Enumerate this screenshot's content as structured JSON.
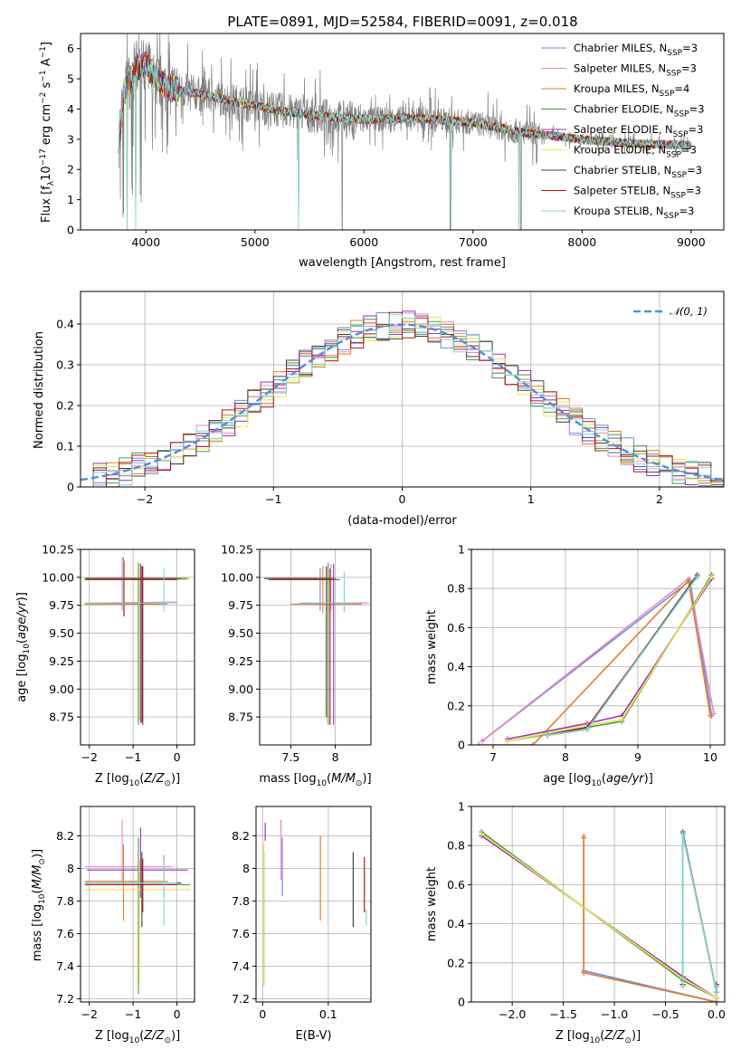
{
  "figure_title": "PLATE=0891, MJD=52584, FIBERID=0091, z=0.018",
  "colors": {
    "Chabrier MILES": "#6b8fd8",
    "Salpeter MILES": "#e887c8",
    "Kroupa MILES": "#e07f2a",
    "Chabrier ELODIE": "#4a9a4a",
    "Salpeter ELODIE": "#9b30b8",
    "Kroupa ELODIE": "#e8e84a",
    "Chabrier STELIB": "#404040",
    "Salpeter STELIB": "#b01818",
    "Kroupa STELIB": "#7ad6d6",
    "data": "#808080",
    "normal": "#5b8fd0"
  },
  "legend": [
    "Chabrier MILES, N_SSP=3",
    "Salpeter MILES, N_SSP=3",
    "Kroupa MILES, N_SSP=4",
    "Chabrier ELODIE, N_SSP=3",
    "Salpeter ELODIE, N_SSP=3",
    "Kroupa ELODIE, N_SSP=3",
    "Chabrier STELIB, N_SSP=3",
    "Salpeter STELIB, N_SSP=3",
    "Kroupa STELIB, N_SSP=3"
  ],
  "hist_legend": "𝒩(0, 1)",
  "chart_data": [
    {
      "id": "spectrum",
      "type": "line",
      "xlabel": "wavelength [Angstrom, rest frame]",
      "ylabel": "Flux [f_λ 10^-17 erg cm^-2 s^-1 A^-1]",
      "xlim": [
        3400,
        9300
      ],
      "ylim": [
        0,
        6.5
      ],
      "xticks": [
        4000,
        5000,
        6000,
        7000,
        8000,
        9000
      ],
      "yticks": [
        0,
        1,
        2,
        3,
        4,
        5,
        6
      ],
      "grid": false,
      "legend_position": "top-right",
      "continuum": {
        "x": [
          3750,
          3800,
          3900,
          4000,
          4100,
          4200,
          4500,
          5000,
          5500,
          6000,
          6500,
          7000,
          7500,
          8000,
          8500,
          9000
        ],
        "y": [
          3.0,
          4.6,
          5.3,
          5.5,
          5.0,
          4.7,
          4.5,
          4.1,
          3.8,
          3.65,
          3.7,
          3.55,
          3.2,
          3.0,
          2.85,
          2.8
        ]
      },
      "dips": [
        [
          3830,
          0
        ],
        [
          3905,
          0
        ],
        [
          5400,
          0
        ],
        [
          6800,
          0
        ],
        [
          7420,
          0
        ]
      ]
    },
    {
      "id": "residual_histogram",
      "type": "bar",
      "xlabel": "(data-model)/error",
      "ylabel": "Normed distribution",
      "xlim": [
        -2.5,
        2.5
      ],
      "ylim": [
        0,
        0.48
      ],
      "xticks": [
        -2,
        -1,
        0,
        1,
        2
      ],
      "yticks": [
        0.0,
        0.1,
        0.2,
        0.3,
        0.4
      ],
      "grid": true,
      "legend_position": "top-right",
      "bin_width": 0.1,
      "reference_curve": "normal(0,1)"
    },
    {
      "id": "age_vs_Z",
      "type": "scatter",
      "xlabel": "Z [log10(Z/Z⊙)]",
      "ylabel": "age  [log10(age/yr)]",
      "xlim": [
        -2.2,
        0.4
      ],
      "ylim": [
        8.5,
        10.25
      ],
      "xticks": [
        -2,
        -1,
        0
      ],
      "yticks": [
        8.75,
        9.0,
        9.25,
        9.5,
        9.75,
        10.0,
        10.25
      ],
      "ytick_labels": [
        "8.75",
        "9.00",
        "9.25",
        "9.50",
        "9.75",
        "10.00",
        "10.25"
      ],
      "grid": true,
      "crosses": [
        {
          "series": "Chabrier MILES",
          "x": [
            -2.1,
            -0.28
          ],
          "y": [
            9.76,
            9.77
          ],
          "vx": -1.22,
          "vy": [
            9.65,
            10.18
          ]
        },
        {
          "series": "Salpeter MILES",
          "x": [
            -2.1,
            0.0
          ],
          "y": [
            9.77,
            9.78
          ],
          "vx": -1.25,
          "vy": [
            9.7,
            10.18
          ]
        },
        {
          "series": "Kroupa MILES",
          "x": [
            -2.1,
            -0.22
          ],
          "y": [
            9.76,
            9.76
          ],
          "vx": -1.2,
          "vy": [
            9.65,
            10.15
          ]
        },
        {
          "series": "Chabrier ELODIE",
          "x": [
            -2.1,
            0.25
          ],
          "y": [
            9.99,
            9.99
          ],
          "vx": -0.88,
          "vy": [
            8.68,
            10.13
          ]
        },
        {
          "series": "Salpeter ELODIE",
          "x": [
            -2.05,
            0.2
          ],
          "y": [
            9.98,
            9.98
          ],
          "vx": -0.83,
          "vy": [
            8.7,
            10.12
          ]
        },
        {
          "series": "Kroupa ELODIE",
          "x": [
            -2.1,
            0.3
          ],
          "y": [
            9.98,
            9.98
          ],
          "vx": -0.86,
          "vy": [
            8.72,
            10.12
          ]
        },
        {
          "series": "Chabrier STELIB",
          "x": [
            -2.1,
            0.1
          ],
          "y": [
            9.99,
            9.99
          ],
          "vx": -0.8,
          "vy": [
            8.7,
            10.1
          ]
        },
        {
          "series": "Salpeter STELIB",
          "x": [
            -2.1,
            0.0
          ],
          "y": [
            9.98,
            9.98
          ],
          "vx": -0.78,
          "vy": [
            8.68,
            10.1
          ]
        },
        {
          "series": "Kroupa STELIB",
          "x": [
            -2.1,
            0.0
          ],
          "y": [
            9.77,
            9.77
          ],
          "vx": -0.3,
          "vy": [
            9.69,
            10.08
          ]
        }
      ]
    },
    {
      "id": "age_vs_mass",
      "type": "scatter",
      "xlabel": "mass [log10(M/M⊙)]",
      "ylabel": "",
      "xlim": [
        7.15,
        8.4
      ],
      "ylim": [
        8.5,
        10.25
      ],
      "xticks": [
        7.5,
        8.0
      ],
      "yticks": [
        8.75,
        9.0,
        9.25,
        9.5,
        9.75,
        10.0,
        10.25
      ],
      "ytick_labels": [
        "8.75",
        "9.00",
        "9.25",
        "9.50",
        "9.75",
        "10.00",
        "10.25"
      ],
      "grid": true,
      "crosses": [
        {
          "series": "Chabrier MILES",
          "x": [
            7.6,
            8.35
          ],
          "y": [
            9.77,
            9.77
          ],
          "vx": 7.83,
          "vy": [
            9.7,
            10.08
          ]
        },
        {
          "series": "Salpeter MILES",
          "x": [
            7.65,
            8.38
          ],
          "y": [
            9.77,
            9.77
          ],
          "vx": 7.95,
          "vy": [
            9.7,
            10.12
          ]
        },
        {
          "series": "Kroupa MILES",
          "x": [
            7.5,
            8.3
          ],
          "y": [
            9.76,
            9.76
          ],
          "vx": 7.86,
          "vy": [
            9.68,
            10.1
          ]
        },
        {
          "series": "Chabrier ELODIE",
          "x": [
            7.2,
            8.0
          ],
          "y": [
            9.99,
            9.99
          ],
          "vx": 7.92,
          "vy": [
            8.68,
            10.13
          ]
        },
        {
          "series": "Salpeter ELODIE",
          "x": [
            7.3,
            8.05
          ],
          "y": [
            9.98,
            9.98
          ],
          "vx": 7.98,
          "vy": [
            8.68,
            10.12
          ]
        },
        {
          "series": "Kroupa ELODIE",
          "x": [
            7.25,
            8.0
          ],
          "y": [
            9.98,
            9.98
          ],
          "vx": 7.9,
          "vy": [
            8.72,
            10.1
          ]
        },
        {
          "series": "Chabrier STELIB",
          "x": [
            7.2,
            7.95
          ],
          "y": [
            9.99,
            9.99
          ],
          "vx": 7.9,
          "vy": [
            8.75,
            10.1
          ]
        },
        {
          "series": "Salpeter STELIB",
          "x": [
            7.25,
            8.0
          ],
          "y": [
            9.98,
            9.98
          ],
          "vx": 7.94,
          "vy": [
            8.68,
            10.08
          ]
        },
        {
          "series": "Kroupa STELIB",
          "x": [
            7.6,
            8.2
          ],
          "y": [
            9.77,
            9.77
          ],
          "vx": 8.1,
          "vy": [
            9.69,
            10.05
          ]
        }
      ]
    },
    {
      "id": "weight_vs_age",
      "type": "line",
      "xlabel": "age  [log10(age/yr)]",
      "ylabel": "mass weight",
      "xlim": [
        6.7,
        10.2
      ],
      "ylim": [
        0,
        1.0
      ],
      "xticks": [
        7,
        8,
        9,
        10
      ],
      "yticks": [
        0.0,
        0.2,
        0.4,
        0.6,
        0.8,
        1.0
      ],
      "grid": true,
      "series": [
        {
          "name": "Chabrier MILES",
          "x": [
            6.85,
            9.72,
            10.02
          ],
          "y": [
            0.02,
            0.84,
            0.15
          ]
        },
        {
          "name": "Salpeter MILES",
          "x": [
            6.85,
            9.7,
            10.05
          ],
          "y": [
            0.02,
            0.85,
            0.16
          ]
        },
        {
          "name": "Kroupa MILES",
          "x": [
            6.8,
            7.55,
            9.7,
            10.0
          ],
          "y": [
            0.0,
            0.0,
            0.84,
            0.15
          ]
        },
        {
          "name": "Chabrier ELODIE",
          "x": [
            7.2,
            8.3,
            8.78,
            10.02
          ],
          "y": [
            0.02,
            0.09,
            0.12,
            0.87
          ]
        },
        {
          "name": "Salpeter ELODIE",
          "x": [
            7.2,
            8.3,
            8.78,
            10.02
          ],
          "y": [
            0.03,
            0.11,
            0.15,
            0.85
          ]
        },
        {
          "name": "Kroupa ELODIE",
          "x": [
            7.2,
            8.3,
            8.78,
            10.02
          ],
          "y": [
            0.02,
            0.1,
            0.13,
            0.86
          ]
        },
        {
          "name": "Chabrier STELIB",
          "x": [
            7.75,
            8.3,
            9.82
          ],
          "y": [
            0.05,
            0.08,
            0.87
          ]
        },
        {
          "name": "Salpeter STELIB",
          "x": [
            7.75,
            8.3,
            9.82
          ],
          "y": [
            0.05,
            0.09,
            0.86
          ]
        },
        {
          "name": "Kroupa STELIB",
          "x": [
            7.75,
            8.3,
            9.82
          ],
          "y": [
            0.05,
            0.08,
            0.86
          ]
        }
      ]
    },
    {
      "id": "mass_vs_Z",
      "type": "scatter",
      "xlabel": "Z [log10(Z/Z⊙)]",
      "ylabel": "mass [log10(M/M⊙)]",
      "xlim": [
        -2.2,
        0.4
      ],
      "ylim": [
        7.18,
        8.38
      ],
      "xticks": [
        -2,
        -1,
        0
      ],
      "yticks": [
        7.2,
        7.4,
        7.6,
        7.8,
        8.0,
        8.2
      ],
      "grid": true,
      "crosses": [
        {
          "series": "Chabrier MILES",
          "x": [
            -2.1,
            -0.28
          ],
          "y": [
            7.92,
            7.92
          ],
          "vx": -0.3,
          "vy": [
            7.82,
            8.08
          ]
        },
        {
          "series": "Salpeter MILES",
          "x": [
            -2.1,
            -0.1
          ],
          "y": [
            8.01,
            8.01
          ],
          "vx": -1.25,
          "vy": [
            7.9,
            8.3
          ]
        },
        {
          "series": "Kroupa MILES",
          "x": [
            -2.1,
            -0.2
          ],
          "y": [
            7.92,
            7.92
          ],
          "vx": -1.22,
          "vy": [
            7.68,
            8.15
          ]
        },
        {
          "series": "Chabrier ELODIE",
          "x": [
            -2.1,
            0.3
          ],
          "y": [
            7.9,
            7.9
          ],
          "vx": -0.88,
          "vy": [
            7.23,
            8.19
          ]
        },
        {
          "series": "Salpeter ELODIE",
          "x": [
            -2.05,
            0.25
          ],
          "y": [
            7.99,
            7.99
          ],
          "vx": -0.83,
          "vy": [
            7.82,
            8.25
          ]
        },
        {
          "series": "Kroupa ELODIE",
          "x": [
            -2.1,
            0.3
          ],
          "y": [
            7.87,
            7.87
          ],
          "vx": -0.86,
          "vy": [
            7.28,
            8.05
          ]
        },
        {
          "series": "Chabrier STELIB",
          "x": [
            -2.1,
            0.1
          ],
          "y": [
            7.91,
            7.91
          ],
          "vx": -0.8,
          "vy": [
            7.64,
            8.1
          ]
        },
        {
          "series": "Salpeter STELIB",
          "x": [
            -2.1,
            0.0
          ],
          "y": [
            7.9,
            7.9
          ],
          "vx": -0.78,
          "vy": [
            7.73,
            8.06
          ]
        },
        {
          "series": "Kroupa STELIB",
          "x": [
            -2.1,
            0.0
          ],
          "y": [
            7.91,
            7.91
          ],
          "vx": -0.3,
          "vy": [
            7.65,
            8.05
          ]
        }
      ]
    },
    {
      "id": "mass_vs_ebv",
      "type": "scatter",
      "xlabel": "E(B-V)",
      "ylabel": "",
      "xlim": [
        -0.01,
        0.165
      ],
      "ylim": [
        7.18,
        8.38
      ],
      "xticks": [
        0.0,
        0.1
      ],
      "yticks": [
        7.2,
        7.4,
        7.6,
        7.8,
        8.0,
        8.2
      ],
      "grid": true,
      "bars": [
        {
          "series": "Chabrier MILES",
          "x": 0.03,
          "vy": [
            7.83,
            8.19
          ]
        },
        {
          "series": "Salpeter MILES",
          "x": 0.028,
          "vy": [
            7.93,
            8.3
          ]
        },
        {
          "series": "Kroupa MILES",
          "x": 0.088,
          "vy": [
            7.68,
            8.2
          ]
        },
        {
          "series": "Chabrier ELODIE",
          "x": 0.002,
          "vy": [
            7.28,
            8.1
          ]
        },
        {
          "series": "Salpeter ELODIE",
          "x": 0.004,
          "vy": [
            8.17,
            8.28
          ]
        },
        {
          "series": "Kroupa ELODIE",
          "x": 0.002,
          "vy": [
            7.28,
            8.15
          ]
        },
        {
          "series": "Chabrier STELIB",
          "x": 0.138,
          "vy": [
            7.64,
            8.1
          ]
        },
        {
          "series": "Salpeter STELIB",
          "x": 0.155,
          "vy": [
            7.73,
            8.07
          ]
        },
        {
          "series": "Kroupa STELIB",
          "x": 0.158,
          "vy": [
            7.65,
            7.75
          ]
        }
      ]
    },
    {
      "id": "weight_vs_Z",
      "type": "line",
      "xlabel": "Z [log10(Z/Z⊙)]",
      "ylabel": "mass weight",
      "xlim": [
        -2.4,
        0.08
      ],
      "ylim": [
        0,
        1.0
      ],
      "xticks": [
        -2.0,
        -1.5,
        -1.0,
        -0.5,
        0.0
      ],
      "xtick_labels": [
        "−2.0",
        "−1.5",
        "−1.0",
        "−0.5",
        "0.0"
      ],
      "yticks": [
        0.0,
        0.2,
        0.4,
        0.6,
        0.8,
        1.0
      ],
      "grid": true,
      "series": [
        {
          "name": "Chabrier MILES",
          "x": [
            -1.3,
            -1.3,
            0.0
          ],
          "y": [
            0.84,
            0.16,
            0.0
          ]
        },
        {
          "name": "Salpeter MILES",
          "x": [
            -1.3,
            -1.3,
            0.0
          ],
          "y": [
            0.85,
            0.15,
            0.0
          ]
        },
        {
          "name": "Kroupa MILES",
          "x": [
            -1.3,
            -1.3,
            0.0,
            0.0
          ],
          "y": [
            0.84,
            0.15,
            0.0,
            0.02
          ]
        },
        {
          "name": "Chabrier ELODIE",
          "x": [
            -2.3,
            -0.33,
            0.0
          ],
          "y": [
            0.87,
            0.11,
            0.02
          ]
        },
        {
          "name": "Salpeter ELODIE",
          "x": [
            -2.3,
            -0.33,
            0.0
          ],
          "y": [
            0.85,
            0.13,
            0.02
          ]
        },
        {
          "name": "Kroupa ELODIE",
          "x": [
            -2.3,
            -0.33,
            0.0
          ],
          "y": [
            0.86,
            0.12,
            0.02
          ]
        },
        {
          "name": "Chabrier STELIB",
          "x": [
            -0.33,
            -0.33,
            0.0,
            0.0
          ],
          "y": [
            0.09,
            0.87,
            0.05,
            0.08
          ]
        },
        {
          "name": "Salpeter STELIB",
          "x": [
            -0.33,
            -0.33,
            0.0,
            0.0
          ],
          "y": [
            0.09,
            0.86,
            0.05,
            0.09
          ]
        },
        {
          "name": "Kroupa STELIB",
          "x": [
            -0.33,
            -0.33,
            0.0,
            0.0
          ],
          "y": [
            0.08,
            0.86,
            0.05,
            0.08
          ]
        }
      ]
    }
  ]
}
